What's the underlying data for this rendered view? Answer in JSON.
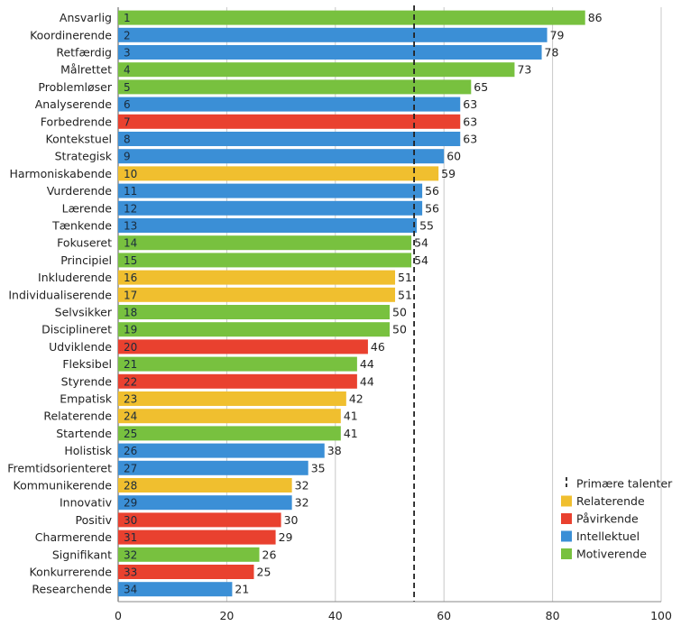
{
  "colors": {
    "Relaterende": "#f0bf2f",
    "Påvirkende": "#e9412f",
    "Intellektuel": "#3b8fd6",
    "Motiverende": "#78c13f",
    "grid": "#c8c8c8",
    "threshold": "#222222"
  },
  "chart_data": {
    "type": "bar",
    "orientation": "horizontal",
    "xlim": [
      0,
      100
    ],
    "xticks": [
      0,
      20,
      40,
      60,
      80,
      100
    ],
    "grid": true,
    "threshold": 54.5,
    "legend_position": "bottom-right",
    "legend": [
      {
        "name": "Primære talenter",
        "kind": "dashed-line"
      },
      {
        "name": "Relaterende",
        "kind": "box"
      },
      {
        "name": "Påvirkende",
        "kind": "box"
      },
      {
        "name": "Intellektuel",
        "kind": "box"
      },
      {
        "name": "Motiverende",
        "kind": "box"
      }
    ],
    "bars": [
      {
        "label": "Ansvarlig",
        "rank": "1",
        "value": 86,
        "group": "Motiverende"
      },
      {
        "label": "Koordinerende",
        "rank": "2",
        "value": 79,
        "group": "Intellektuel"
      },
      {
        "label": "Retfærdig",
        "rank": "3",
        "value": 78,
        "group": "Intellektuel"
      },
      {
        "label": "Målrettet",
        "rank": "4",
        "value": 73,
        "group": "Motiverende"
      },
      {
        "label": "Problemløser",
        "rank": "5",
        "value": 65,
        "group": "Motiverende"
      },
      {
        "label": "Analyserende",
        "rank": "6",
        "value": 63,
        "group": "Intellektuel"
      },
      {
        "label": "Forbedrende",
        "rank": "7",
        "value": 63,
        "group": "Påvirkende"
      },
      {
        "label": "Kontekstuel",
        "rank": "8",
        "value": 63,
        "group": "Intellektuel"
      },
      {
        "label": "Strategisk",
        "rank": "9",
        "value": 60,
        "group": "Intellektuel"
      },
      {
        "label": "Harmoniskabende",
        "rank": "10",
        "value": 59,
        "group": "Relaterende"
      },
      {
        "label": "Vurderende",
        "rank": "11",
        "value": 56,
        "group": "Intellektuel"
      },
      {
        "label": "Lærende",
        "rank": "12",
        "value": 56,
        "group": "Intellektuel"
      },
      {
        "label": "Tænkende",
        "rank": "13",
        "value": 55,
        "group": "Intellektuel"
      },
      {
        "label": "Fokuseret",
        "rank": "14",
        "value": 54,
        "group": "Motiverende"
      },
      {
        "label": "Principiel",
        "rank": "15",
        "value": 54,
        "group": "Motiverende"
      },
      {
        "label": "Inkluderende",
        "rank": "16",
        "value": 51,
        "group": "Relaterende"
      },
      {
        "label": "Individualiserende",
        "rank": "17",
        "value": 51,
        "group": "Relaterende"
      },
      {
        "label": "Selvsikker",
        "rank": "18",
        "value": 50,
        "group": "Motiverende"
      },
      {
        "label": "Disciplineret",
        "rank": "19",
        "value": 50,
        "group": "Motiverende"
      },
      {
        "label": "Udviklende",
        "rank": "20",
        "value": 46,
        "group": "Påvirkende"
      },
      {
        "label": "Fleksibel",
        "rank": "21",
        "value": 44,
        "group": "Motiverende"
      },
      {
        "label": "Styrende",
        "rank": "22",
        "value": 44,
        "group": "Påvirkende"
      },
      {
        "label": "Empatisk",
        "rank": "23",
        "value": 42,
        "group": "Relaterende"
      },
      {
        "label": "Relaterende",
        "rank": "24",
        "value": 41,
        "group": "Relaterende"
      },
      {
        "label": "Startende",
        "rank": "25",
        "value": 41,
        "group": "Motiverende"
      },
      {
        "label": "Holistisk",
        "rank": "26",
        "value": 38,
        "group": "Intellektuel"
      },
      {
        "label": "Fremtidsorienteret",
        "rank": "27",
        "value": 35,
        "group": "Intellektuel"
      },
      {
        "label": "Kommunikerende",
        "rank": "28",
        "value": 32,
        "group": "Relaterende"
      },
      {
        "label": "Innovativ",
        "rank": "29",
        "value": 32,
        "group": "Intellektuel"
      },
      {
        "label": "Positiv",
        "rank": "30",
        "value": 30,
        "group": "Påvirkende"
      },
      {
        "label": "Charmerende",
        "rank": "31",
        "value": 29,
        "group": "Påvirkende"
      },
      {
        "label": "Signifikant",
        "rank": "32",
        "value": 26,
        "group": "Motiverende"
      },
      {
        "label": "Konkurrerende",
        "rank": "33",
        "value": 25,
        "group": "Påvirkende"
      },
      {
        "label": "Researchende",
        "rank": "34",
        "value": 21,
        "group": "Intellektuel"
      }
    ]
  }
}
